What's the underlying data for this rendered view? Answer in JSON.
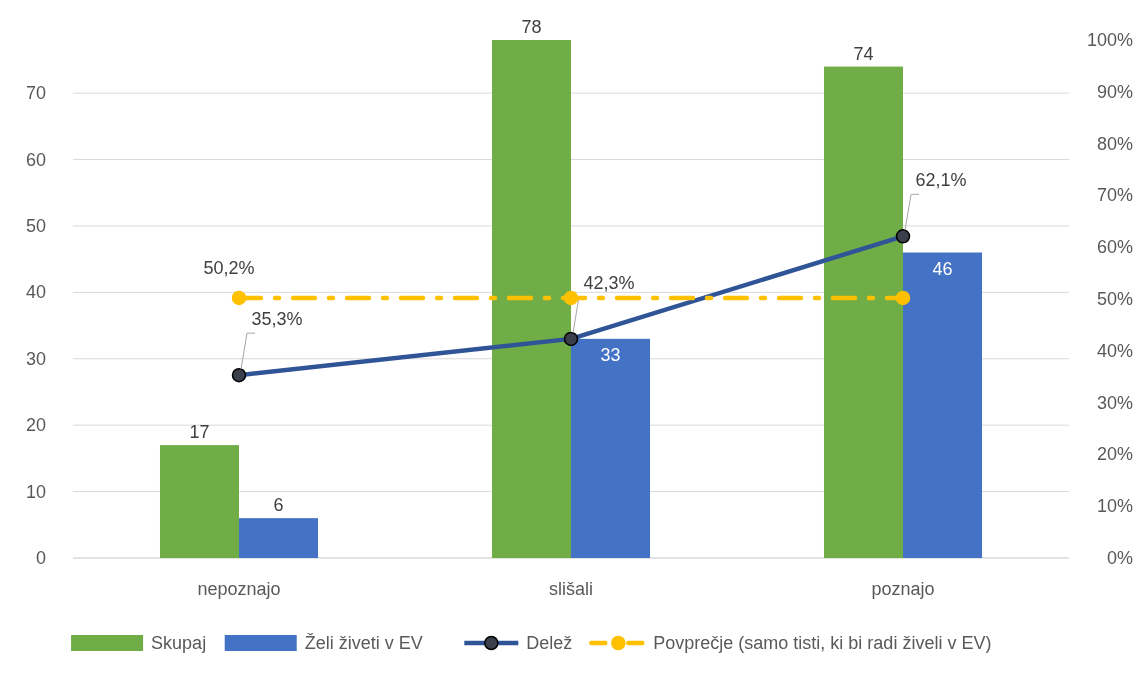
{
  "chart_data": {
    "type": "bar",
    "categories": [
      "nepoznajo",
      "slišali",
      "poznajo"
    ],
    "series": [
      {
        "name": "Skupaj",
        "color": "#70ad47",
        "values": [
          17,
          78,
          74
        ],
        "value_labels": [
          "17",
          "78",
          "74"
        ]
      },
      {
        "name": "Želi živeti v EV",
        "color": "#4472c4",
        "values": [
          6,
          33,
          46
        ],
        "value_labels": [
          "6",
          "33",
          "46"
        ]
      },
      {
        "name": "Delež",
        "type": "line",
        "axis": "y2",
        "color": "#2f5597",
        "marker": "circle",
        "line_style": "solid",
        "values": [
          35.3,
          42.3,
          62.1
        ],
        "value_labels": [
          "35,3%",
          "42,3%",
          "62,1%"
        ]
      },
      {
        "name": "Povprečje (samo tisti, ki bi radi živeli v EV)",
        "type": "line",
        "axis": "y2",
        "color": "#ffc000",
        "marker": "circle",
        "line_style": "dashed",
        "values": [
          50.2,
          50.2,
          50.2
        ],
        "value_labels": [
          "50,2%",
          null,
          null
        ]
      }
    ],
    "ylim": [
      0,
      78
    ],
    "yticks": [
      0,
      10,
      20,
      30,
      40,
      50,
      60,
      70
    ],
    "y2lim": [
      0,
      100
    ],
    "y2ticks": [
      {
        "value": 0,
        "label": "0%"
      },
      {
        "value": 10,
        "label": "10%"
      },
      {
        "value": 20,
        "label": "20%"
      },
      {
        "value": 30,
        "label": "30%"
      },
      {
        "value": 40,
        "label": "40%"
      },
      {
        "value": 50,
        "label": "50%"
      },
      {
        "value": 60,
        "label": "60%"
      },
      {
        "value": 70,
        "label": "70%"
      },
      {
        "value": 80,
        "label": "80%"
      },
      {
        "value": 90,
        "label": "90%"
      },
      {
        "value": 100,
        "label": "100%"
      }
    ],
    "grid": "y",
    "legend": "bottom"
  }
}
